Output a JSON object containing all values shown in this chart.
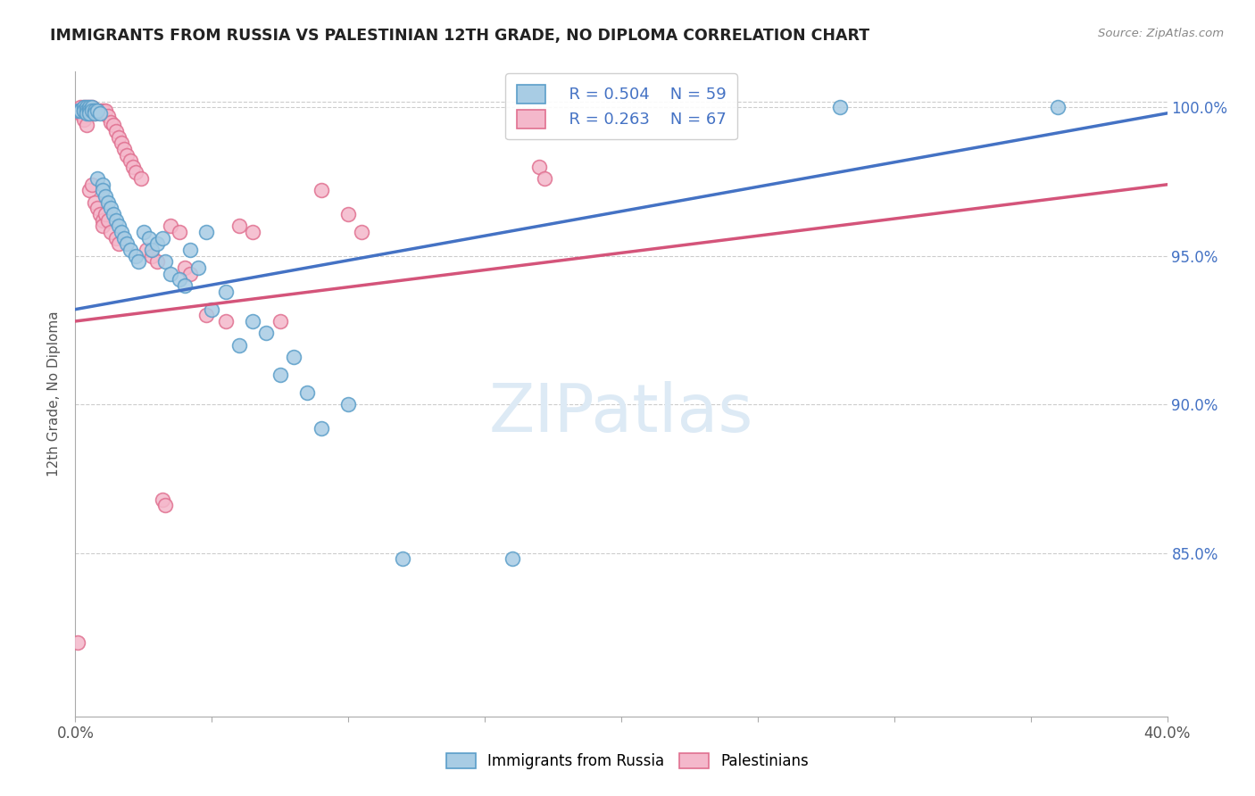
{
  "title": "IMMIGRANTS FROM RUSSIA VS PALESTINIAN 12TH GRADE, NO DIPLOMA CORRELATION CHART",
  "source": "Source: ZipAtlas.com",
  "legend_blue_label": "Immigrants from Russia",
  "legend_pink_label": "Palestinians",
  "r_blue": "R = 0.504",
  "n_blue": "N = 59",
  "r_pink": "R = 0.263",
  "n_pink": "N = 67",
  "blue_color": "#a8cce4",
  "pink_color": "#f4b8cb",
  "blue_edge_color": "#5b9ec9",
  "pink_edge_color": "#e07090",
  "blue_line_color": "#4472c4",
  "pink_line_color": "#d4547a",
  "background_color": "#ffffff",
  "watermark_color": "#ddeaf5",
  "xlim": [
    0.0,
    0.4
  ],
  "ylim": [
    0.795,
    1.012
  ],
  "y_ticks": [
    0.85,
    0.9,
    0.95,
    1.0
  ],
  "y_tick_labels": [
    "85.0%",
    "90.0%",
    "95.0%",
    "100.0%"
  ],
  "blue_scatter": [
    [
      0.001,
      0.999
    ],
    [
      0.002,
      0.999
    ],
    [
      0.002,
      0.999
    ],
    [
      0.003,
      1.0
    ],
    [
      0.003,
      0.999
    ],
    [
      0.003,
      0.999
    ],
    [
      0.004,
      1.0
    ],
    [
      0.004,
      0.999
    ],
    [
      0.004,
      0.998
    ],
    [
      0.005,
      1.0
    ],
    [
      0.005,
      0.999
    ],
    [
      0.005,
      0.998
    ],
    [
      0.006,
      1.0
    ],
    [
      0.006,
      0.999
    ],
    [
      0.007,
      0.999
    ],
    [
      0.007,
      0.998
    ],
    [
      0.008,
      0.999
    ],
    [
      0.008,
      0.976
    ],
    [
      0.009,
      0.998
    ],
    [
      0.01,
      0.974
    ],
    [
      0.01,
      0.972
    ],
    [
      0.011,
      0.97
    ],
    [
      0.012,
      0.968
    ],
    [
      0.013,
      0.966
    ],
    [
      0.014,
      0.964
    ],
    [
      0.015,
      0.962
    ],
    [
      0.016,
      0.96
    ],
    [
      0.017,
      0.958
    ],
    [
      0.018,
      0.956
    ],
    [
      0.019,
      0.954
    ],
    [
      0.02,
      0.952
    ],
    [
      0.022,
      0.95
    ],
    [
      0.023,
      0.948
    ],
    [
      0.025,
      0.958
    ],
    [
      0.027,
      0.956
    ],
    [
      0.028,
      0.952
    ],
    [
      0.03,
      0.954
    ],
    [
      0.032,
      0.956
    ],
    [
      0.033,
      0.948
    ],
    [
      0.035,
      0.944
    ],
    [
      0.038,
      0.942
    ],
    [
      0.04,
      0.94
    ],
    [
      0.042,
      0.952
    ],
    [
      0.045,
      0.946
    ],
    [
      0.048,
      0.958
    ],
    [
      0.05,
      0.932
    ],
    [
      0.055,
      0.938
    ],
    [
      0.06,
      0.92
    ],
    [
      0.065,
      0.928
    ],
    [
      0.07,
      0.924
    ],
    [
      0.075,
      0.91
    ],
    [
      0.08,
      0.916
    ],
    [
      0.085,
      0.904
    ],
    [
      0.09,
      0.892
    ],
    [
      0.1,
      0.9
    ],
    [
      0.12,
      0.848
    ],
    [
      0.16,
      0.848
    ],
    [
      0.28,
      1.0
    ],
    [
      0.36,
      1.0
    ]
  ],
  "pink_scatter": [
    [
      0.001,
      0.82
    ],
    [
      0.001,
      0.999
    ],
    [
      0.002,
      1.0
    ],
    [
      0.002,
      0.999
    ],
    [
      0.002,
      0.998
    ],
    [
      0.003,
      1.0
    ],
    [
      0.003,
      0.999
    ],
    [
      0.003,
      0.997
    ],
    [
      0.003,
      0.996
    ],
    [
      0.004,
      1.0
    ],
    [
      0.004,
      0.999
    ],
    [
      0.004,
      0.998
    ],
    [
      0.004,
      0.994
    ],
    [
      0.005,
      1.0
    ],
    [
      0.005,
      0.999
    ],
    [
      0.005,
      0.998
    ],
    [
      0.005,
      0.972
    ],
    [
      0.006,
      1.0
    ],
    [
      0.006,
      0.999
    ],
    [
      0.006,
      0.974
    ],
    [
      0.007,
      0.999
    ],
    [
      0.007,
      0.998
    ],
    [
      0.007,
      0.968
    ],
    [
      0.008,
      0.999
    ],
    [
      0.008,
      0.966
    ],
    [
      0.009,
      0.999
    ],
    [
      0.009,
      0.964
    ],
    [
      0.01,
      0.999
    ],
    [
      0.01,
      0.962
    ],
    [
      0.01,
      0.96
    ],
    [
      0.011,
      0.999
    ],
    [
      0.011,
      0.964
    ],
    [
      0.012,
      0.997
    ],
    [
      0.012,
      0.962
    ],
    [
      0.013,
      0.995
    ],
    [
      0.013,
      0.958
    ],
    [
      0.014,
      0.994
    ],
    [
      0.015,
      0.992
    ],
    [
      0.015,
      0.956
    ],
    [
      0.016,
      0.99
    ],
    [
      0.016,
      0.954
    ],
    [
      0.017,
      0.988
    ],
    [
      0.018,
      0.986
    ],
    [
      0.019,
      0.984
    ],
    [
      0.02,
      0.982
    ],
    [
      0.021,
      0.98
    ],
    [
      0.022,
      0.978
    ],
    [
      0.024,
      0.976
    ],
    [
      0.026,
      0.952
    ],
    [
      0.028,
      0.95
    ],
    [
      0.03,
      0.948
    ],
    [
      0.032,
      0.868
    ],
    [
      0.033,
      0.866
    ],
    [
      0.035,
      0.96
    ],
    [
      0.038,
      0.958
    ],
    [
      0.04,
      0.946
    ],
    [
      0.042,
      0.944
    ],
    [
      0.048,
      0.93
    ],
    [
      0.055,
      0.928
    ],
    [
      0.06,
      0.96
    ],
    [
      0.065,
      0.958
    ],
    [
      0.075,
      0.928
    ],
    [
      0.09,
      0.972
    ],
    [
      0.1,
      0.964
    ],
    [
      0.105,
      0.958
    ],
    [
      0.17,
      0.98
    ],
    [
      0.172,
      0.976
    ]
  ]
}
